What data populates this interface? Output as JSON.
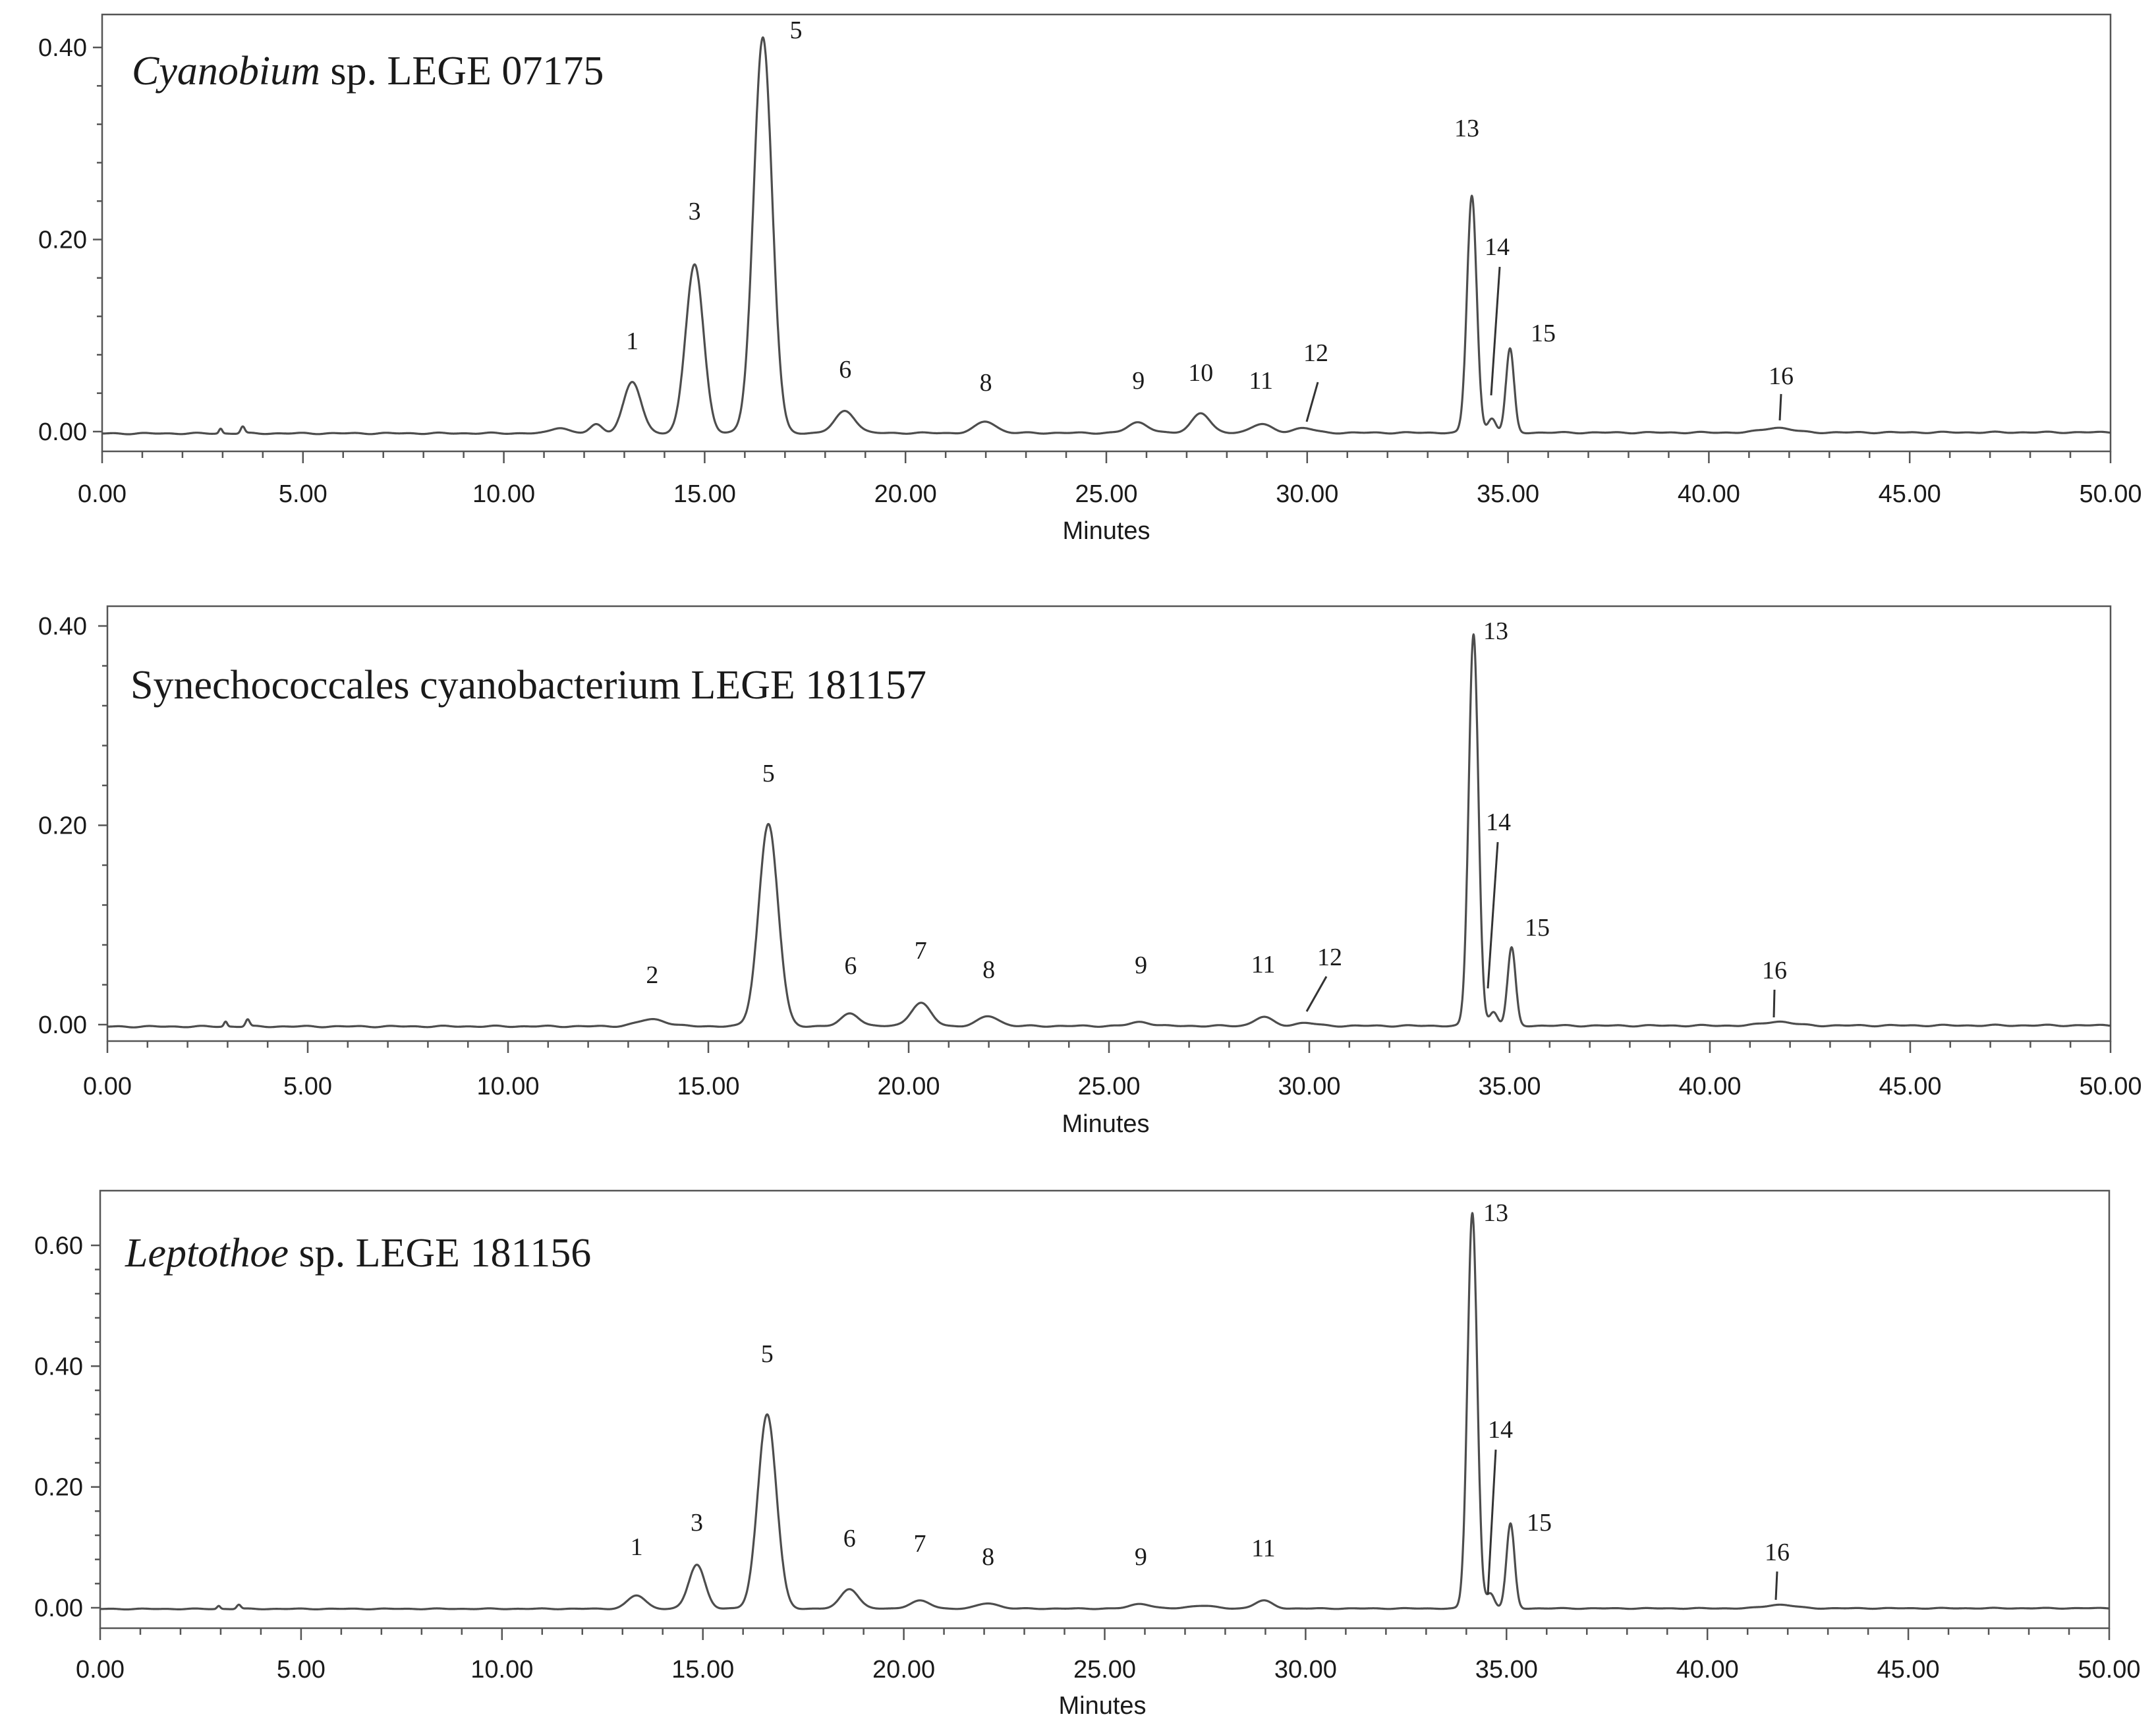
{
  "chart_data": [
    {
      "type": "line",
      "title_italic": "Cyanobium",
      "title_rest": " sp. LEGE 07175",
      "xlabel": "Minutes",
      "ylabel": "",
      "xlim": [
        0,
        50
      ],
      "ylim": [
        0,
        0.4
      ],
      "xticks": [
        "0.00",
        "5.00",
        "10.00",
        "15.00",
        "20.00",
        "25.00",
        "30.00",
        "35.00",
        "40.00",
        "45.00",
        "50.00"
      ],
      "yticks": [
        "0.00",
        "0.20",
        "0.40"
      ],
      "peaks": [
        {
          "label": "1",
          "t": 13.2,
          "h": 0.053,
          "w": 0.22
        },
        {
          "label": "3",
          "t": 14.75,
          "h": 0.176,
          "w": 0.22
        },
        {
          "label": "5",
          "t": 16.45,
          "h": 0.412,
          "w": 0.23
        },
        {
          "label": "6",
          "t": 18.5,
          "h": 0.023,
          "w": 0.25
        },
        {
          "label": "8",
          "t": 22.0,
          "h": 0.012,
          "w": 0.25
        },
        {
          "label": "9",
          "t": 25.8,
          "h": 0.011,
          "w": 0.25
        },
        {
          "label": "10",
          "t": 27.35,
          "h": 0.021,
          "w": 0.22
        },
        {
          "label": "11",
          "t": 28.85,
          "h": 0.009,
          "w": 0.25
        },
        {
          "label": "12",
          "t": 29.9,
          "h": 0.005,
          "w": 0.25
        },
        {
          "label": "13",
          "t": 34.1,
          "h": 0.247,
          "w": 0.12
        },
        {
          "label": "14",
          "t": 34.6,
          "h": 0.015,
          "w": 0.1
        },
        {
          "label": "15",
          "t": 35.05,
          "h": 0.087,
          "w": 0.1
        },
        {
          "label": "16",
          "t": 41.7,
          "h": 0.005,
          "w": 0.35
        }
      ],
      "minor_peaks": [
        {
          "t": 2.95,
          "h": 0.005,
          "w": 0.04
        },
        {
          "t": 3.5,
          "h": 0.007,
          "w": 0.05
        },
        {
          "t": 11.4,
          "h": 0.006,
          "w": 0.2
        },
        {
          "t": 12.3,
          "h": 0.009,
          "w": 0.15
        }
      ]
    },
    {
      "type": "line",
      "title_italic": "",
      "title_rest": "Synechococcales cyanobacterium LEGE 181157",
      "xlabel": "Minutes",
      "ylabel": "",
      "xlim": [
        0,
        50
      ],
      "ylim": [
        0,
        0.4
      ],
      "xticks": [
        "0.00",
        "5.00",
        "10.00",
        "15.00",
        "20.00",
        "25.00",
        "30.00",
        "35.00",
        "40.00",
        "45.00",
        "50.00"
      ],
      "yticks": [
        "0.00",
        "0.20",
        "0.40"
      ],
      "peaks": [
        {
          "label": "2",
          "t": 13.6,
          "h": 0.007,
          "w": 0.35
        },
        {
          "label": "5",
          "t": 16.5,
          "h": 0.203,
          "w": 0.24
        },
        {
          "label": "6",
          "t": 18.55,
          "h": 0.013,
          "w": 0.22
        },
        {
          "label": "7",
          "t": 20.3,
          "h": 0.023,
          "w": 0.25
        },
        {
          "label": "8",
          "t": 22.0,
          "h": 0.01,
          "w": 0.25
        },
        {
          "label": "9",
          "t": 25.8,
          "h": 0.004,
          "w": 0.25
        },
        {
          "label": "11",
          "t": 28.85,
          "h": 0.009,
          "w": 0.22
        },
        {
          "label": "12",
          "t": 29.9,
          "h": 0.003,
          "w": 0.25
        },
        {
          "label": "13",
          "t": 34.1,
          "h": 0.393,
          "w": 0.12
        },
        {
          "label": "14",
          "t": 34.6,
          "h": 0.014,
          "w": 0.1
        },
        {
          "label": "15",
          "t": 35.05,
          "h": 0.078,
          "w": 0.1
        },
        {
          "label": "16",
          "t": 41.7,
          "h": 0.004,
          "w": 0.35
        }
      ],
      "minor_peaks": [
        {
          "t": 2.95,
          "h": 0.005,
          "w": 0.04
        },
        {
          "t": 3.5,
          "h": 0.007,
          "w": 0.05
        }
      ]
    },
    {
      "type": "line",
      "title_italic": "Leptothoe",
      "title_rest": " sp. LEGE 181156",
      "xlabel": "Minutes",
      "ylabel": "",
      "xlim": [
        0,
        50
      ],
      "ylim": [
        0,
        0.6
      ],
      "xticks": [
        "0.00",
        "5.00",
        "10.00",
        "15.00",
        "20.00",
        "25.00",
        "30.00",
        "35.00",
        "40.00",
        "45.00",
        "50.00"
      ],
      "yticks": [
        "0.00",
        "0.20",
        "0.40",
        "0.60"
      ],
      "peaks": [
        {
          "label": "1",
          "t": 13.35,
          "h": 0.022,
          "w": 0.22
        },
        {
          "label": "3",
          "t": 14.85,
          "h": 0.073,
          "w": 0.2
        },
        {
          "label": "5",
          "t": 16.6,
          "h": 0.322,
          "w": 0.23
        },
        {
          "label": "6",
          "t": 18.65,
          "h": 0.033,
          "w": 0.22
        },
        {
          "label": "7",
          "t": 20.4,
          "h": 0.013,
          "w": 0.25
        },
        {
          "label": "8",
          "t": 22.1,
          "h": 0.009,
          "w": 0.25
        },
        {
          "label": "9",
          "t": 25.9,
          "h": 0.008,
          "w": 0.25
        },
        {
          "label": "11",
          "t": 28.95,
          "h": 0.013,
          "w": 0.22
        },
        {
          "label": "13",
          "t": 34.15,
          "h": 0.655,
          "w": 0.12
        },
        {
          "label": "14",
          "t": 34.6,
          "h": 0.025,
          "w": 0.1
        },
        {
          "label": "15",
          "t": 35.1,
          "h": 0.14,
          "w": 0.1
        },
        {
          "label": "16",
          "t": 41.8,
          "h": 0.006,
          "w": 0.35
        }
      ],
      "minor_peaks": [
        {
          "t": 2.95,
          "h": 0.005,
          "w": 0.04
        },
        {
          "t": 3.45,
          "h": 0.007,
          "w": 0.05
        },
        {
          "t": 27.4,
          "h": 0.005,
          "w": 0.3
        }
      ]
    }
  ]
}
